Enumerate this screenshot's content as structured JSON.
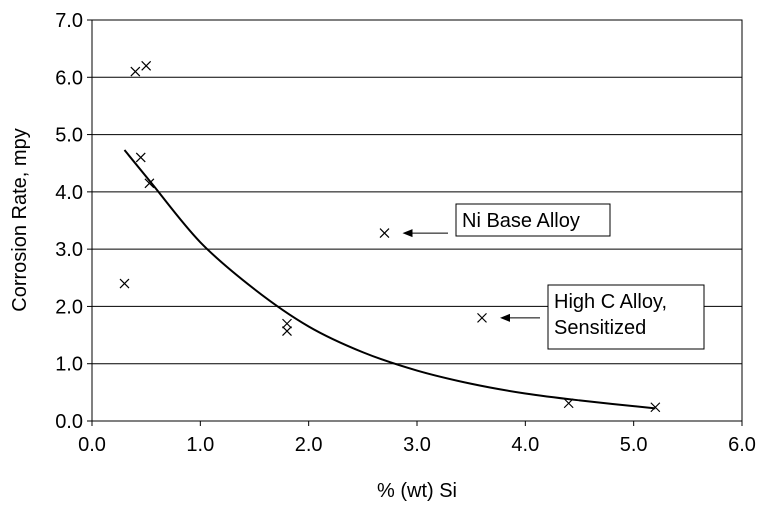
{
  "chart_data": {
    "type": "scatter",
    "xlabel": "% (wt) Si",
    "ylabel": "Corrosion Rate, mpy",
    "xlim": [
      0.0,
      6.0
    ],
    "ylim": [
      0.0,
      7.0
    ],
    "x_ticks": [
      "0.0",
      "1.0",
      "2.0",
      "3.0",
      "4.0",
      "5.0",
      "6.0"
    ],
    "y_ticks": [
      "0.0",
      "1.0",
      "2.0",
      "3.0",
      "4.0",
      "5.0",
      "6.0",
      "7.0"
    ],
    "grid": "horizontal",
    "marker": "x",
    "points": [
      {
        "x": 0.3,
        "y": 2.4
      },
      {
        "x": 0.4,
        "y": 6.1
      },
      {
        "x": 0.5,
        "y": 6.2
      },
      {
        "x": 0.45,
        "y": 4.6
      },
      {
        "x": 0.53,
        "y": 4.15
      },
      {
        "x": 1.8,
        "y": 1.7
      },
      {
        "x": 1.8,
        "y": 1.57
      },
      {
        "x": 2.7,
        "y": 3.28
      },
      {
        "x": 3.6,
        "y": 1.8
      },
      {
        "x": 4.4,
        "y": 0.31
      },
      {
        "x": 5.2,
        "y": 0.24
      }
    ],
    "trendline": {
      "type": "exponential",
      "x_range": [
        0.3,
        5.2
      ],
      "points": [
        {
          "x": 0.3,
          "y": 4.73
        },
        {
          "x": 0.55,
          "y": 4.15
        },
        {
          "x": 1.0,
          "y": 3.12
        },
        {
          "x": 1.5,
          "y": 2.3
        },
        {
          "x": 2.0,
          "y": 1.65
        },
        {
          "x": 2.5,
          "y": 1.2
        },
        {
          "x": 3.0,
          "y": 0.88
        },
        {
          "x": 3.5,
          "y": 0.65
        },
        {
          "x": 4.0,
          "y": 0.48
        },
        {
          "x": 4.5,
          "y": 0.36
        },
        {
          "x": 5.2,
          "y": 0.22
        }
      ]
    },
    "annotations": [
      {
        "lines": [
          "Ni Base Alloy"
        ],
        "target": {
          "x": 2.7,
          "y": 3.28
        }
      },
      {
        "lines": [
          "High C Alloy,",
          "Sensitized"
        ],
        "target": {
          "x": 3.6,
          "y": 1.8
        }
      }
    ]
  }
}
